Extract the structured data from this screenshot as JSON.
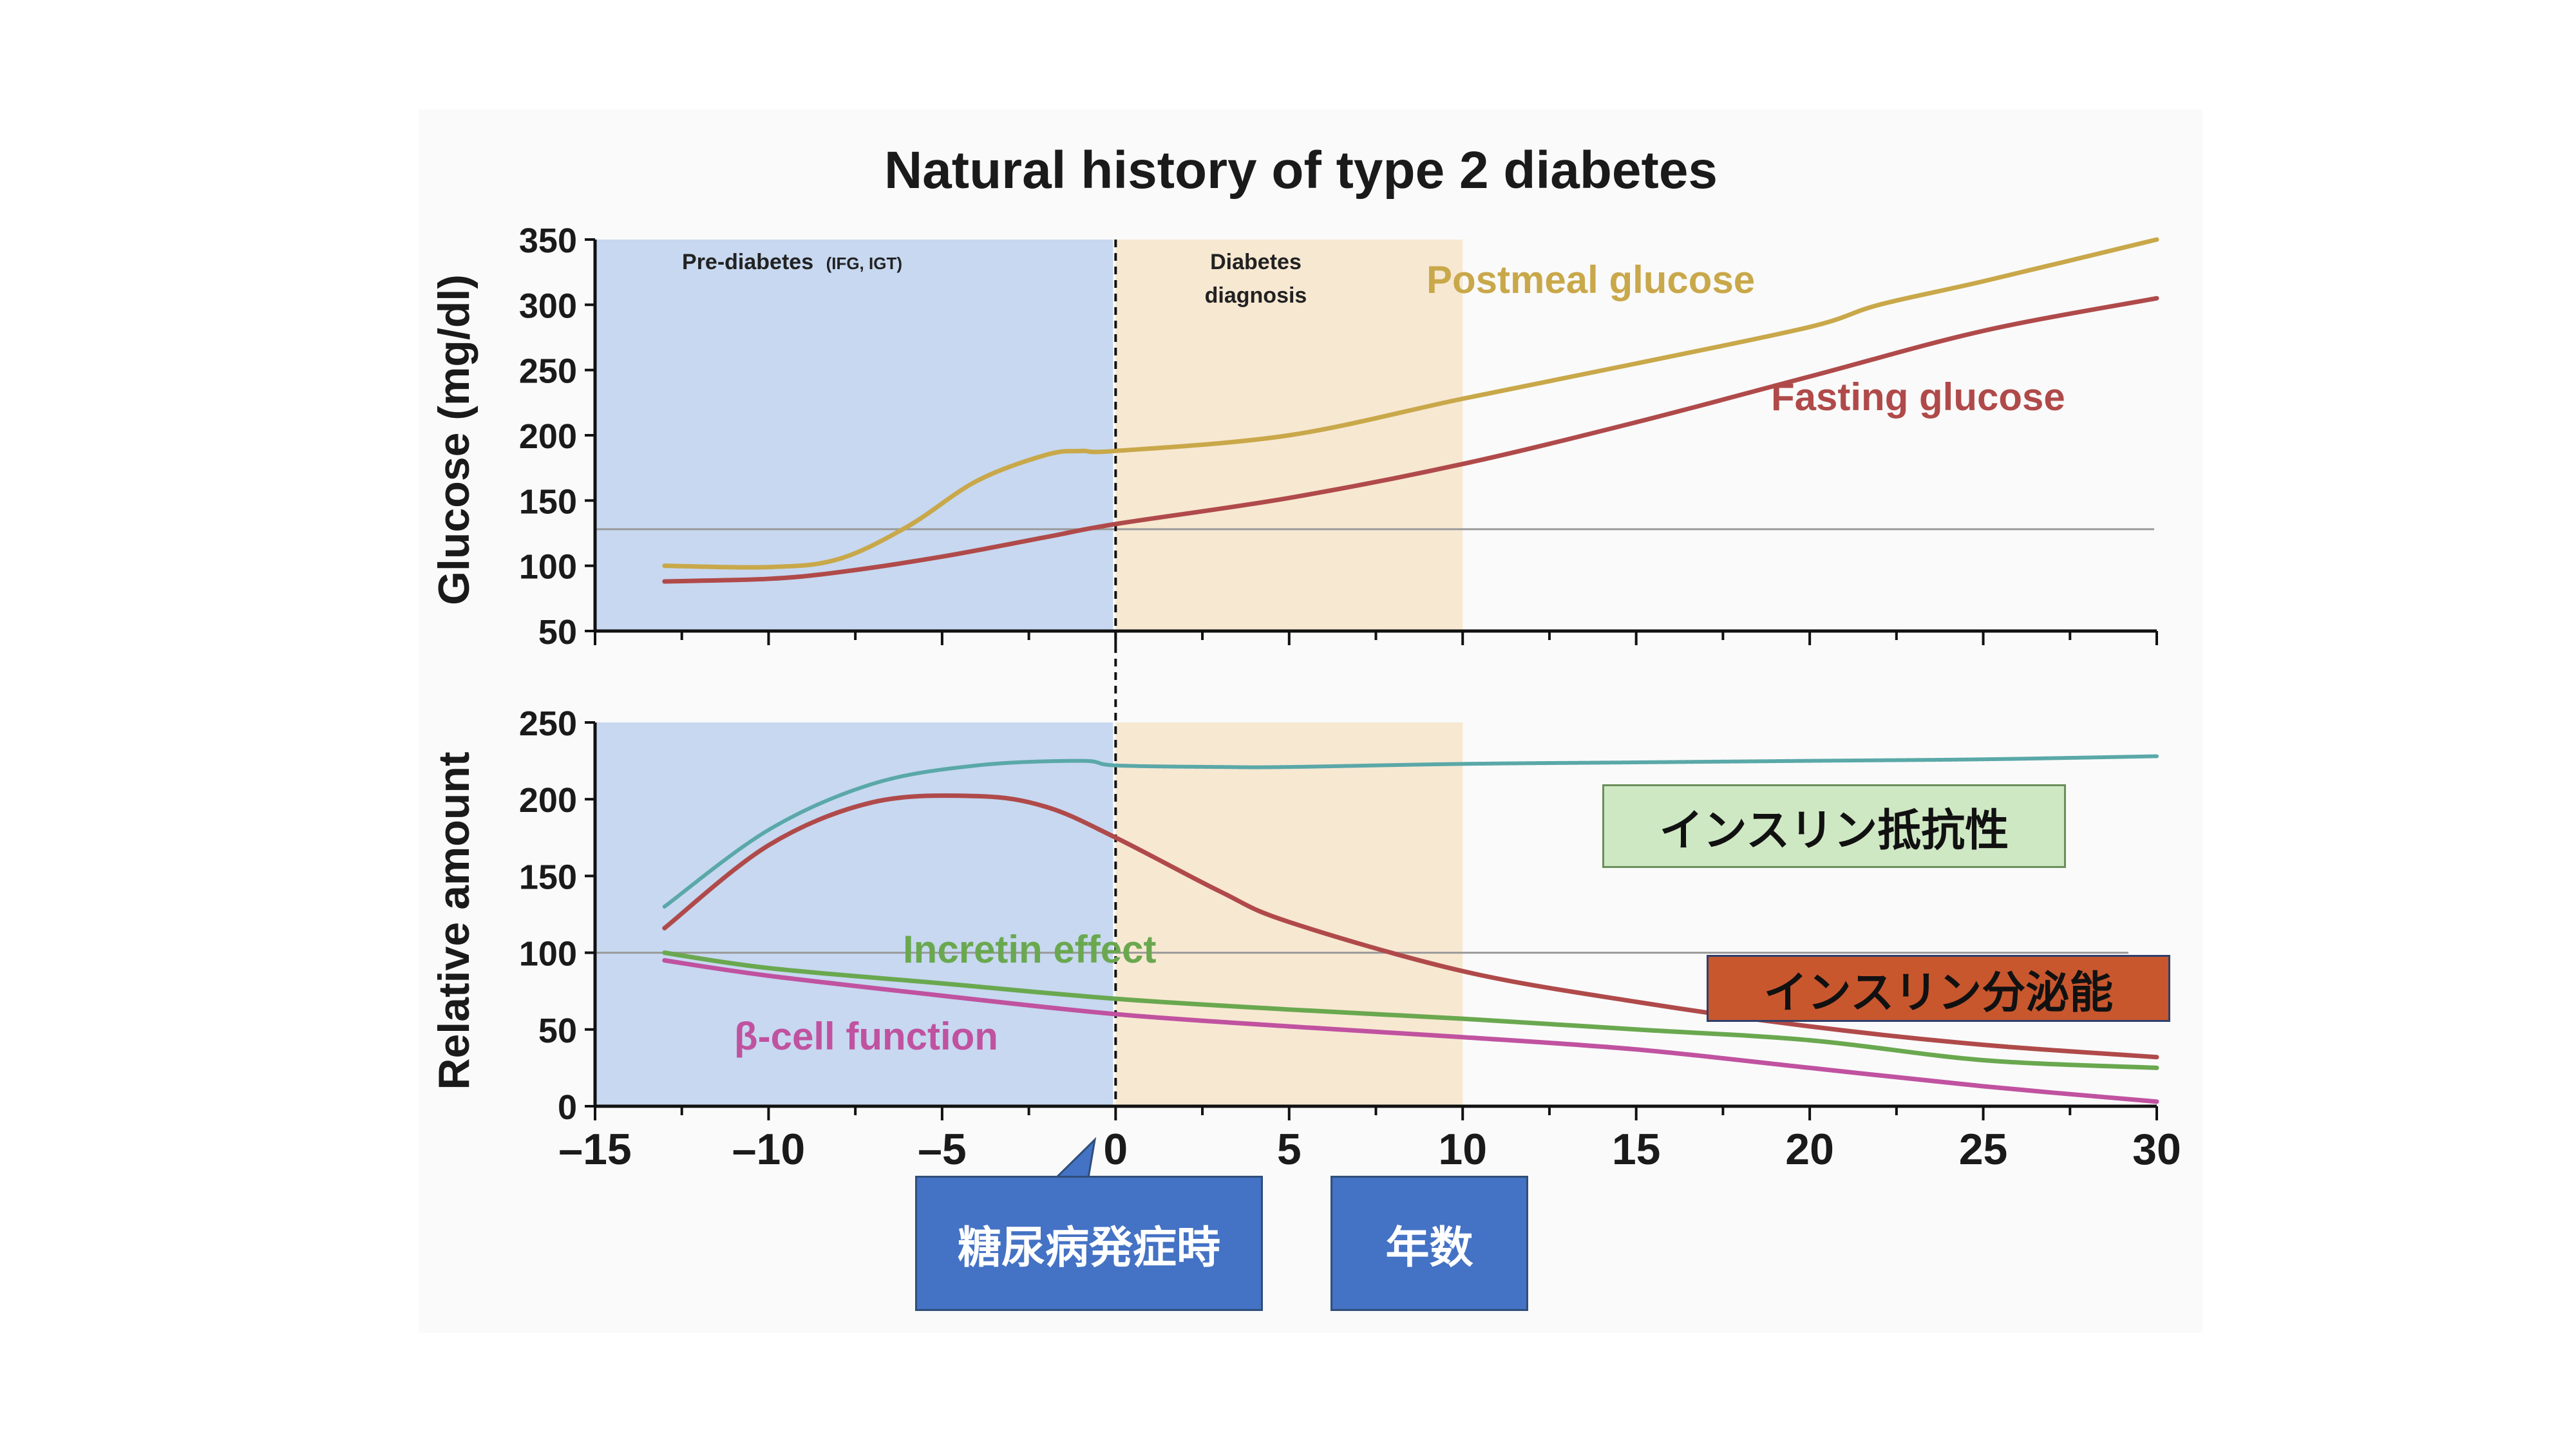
{
  "chart_data": [
    {
      "type": "line",
      "title": "Natural history of type 2 diabetes",
      "ylabel": "Glucose (mg/dl)",
      "xlabel": "",
      "xlim": [
        -15,
        30
      ],
      "ylim": [
        50,
        350
      ],
      "yticks": [
        50,
        100,
        150,
        200,
        250,
        300,
        350
      ],
      "grid": false,
      "regions": [
        {
          "name": "Pre-diabetes",
          "subtitle": "(IFG, IGT)",
          "x_range": [
            -15,
            0
          ],
          "color": "#c7d8f0"
        },
        {
          "name_line1": "Diabetes",
          "name_line2": "diagnosis",
          "x_range": [
            0,
            10
          ],
          "color": "#f7e8d2"
        }
      ],
      "reference_line": 128,
      "series": [
        {
          "name": "Postmeal glucose",
          "color": "#c9a84a",
          "x": [
            -13,
            -10,
            -8,
            -6,
            -4,
            -2,
            -1,
            0,
            5,
            10,
            15,
            20,
            22,
            25,
            30
          ],
          "y": [
            100,
            99,
            105,
            130,
            165,
            185,
            188,
            188,
            200,
            228,
            255,
            283,
            300,
            318,
            350
          ]
        },
        {
          "name": "Fasting glucose",
          "color": "#b04a4a",
          "x": [
            -13,
            -10,
            -8,
            -5,
            -2,
            0,
            5,
            10,
            15,
            20,
            25,
            30
          ],
          "y": [
            88,
            90,
            95,
            107,
            122,
            132,
            152,
            178,
            210,
            245,
            280,
            305
          ]
        }
      ]
    },
    {
      "type": "line",
      "ylabel": "Relative amount",
      "xlabel": "",
      "xlim": [
        -15,
        30
      ],
      "ylim": [
        0,
        250
      ],
      "yticks": [
        0,
        50,
        100,
        150,
        200,
        250
      ],
      "xticks": [
        -15,
        -10,
        -5,
        0,
        5,
        10,
        15,
        20,
        25,
        30
      ],
      "xtick_labels": [
        "–15",
        "–10",
        "–5",
        "0",
        "5",
        "10",
        "15",
        "20",
        "25",
        "30"
      ],
      "grid": false,
      "reference_line": 100,
      "series": [
        {
          "name": "",
          "color": "#5aa8a8",
          "x": [
            -13,
            -10,
            -7,
            -4,
            -1,
            0,
            3,
            5,
            10,
            15,
            20,
            25,
            30
          ],
          "y": [
            130,
            180,
            210,
            222,
            225,
            222,
            221,
            221,
            223,
            224,
            225,
            226,
            228
          ]
        },
        {
          "name": "",
          "color": "#b04a4a",
          "x": [
            -13,
            -10,
            -7,
            -4,
            -2,
            0,
            3,
            5,
            10,
            15,
            20,
            25,
            30
          ],
          "y": [
            116,
            170,
            198,
            202,
            195,
            175,
            140,
            120,
            88,
            68,
            52,
            40,
            32
          ]
        },
        {
          "name": "Incretin effect",
          "color": "#6aa84f",
          "x": [
            -13,
            -10,
            -5,
            0,
            5,
            10,
            15,
            20,
            25,
            30
          ],
          "y": [
            100,
            90,
            80,
            70,
            63,
            57,
            50,
            43,
            30,
            25
          ]
        },
        {
          "name": "β-cell function",
          "color": "#c052a0",
          "x": [
            -13,
            -10,
            -5,
            0,
            5,
            10,
            15,
            20,
            25,
            30
          ],
          "y": [
            95,
            85,
            72,
            60,
            52,
            45,
            37,
            25,
            13,
            3
          ]
        }
      ]
    }
  ],
  "callouts": {
    "insulin_resistance": "インスリン抵抗性",
    "insulin_secretion": "インスリン分泌能",
    "onset": "糖尿病発症時",
    "years": "年数"
  }
}
